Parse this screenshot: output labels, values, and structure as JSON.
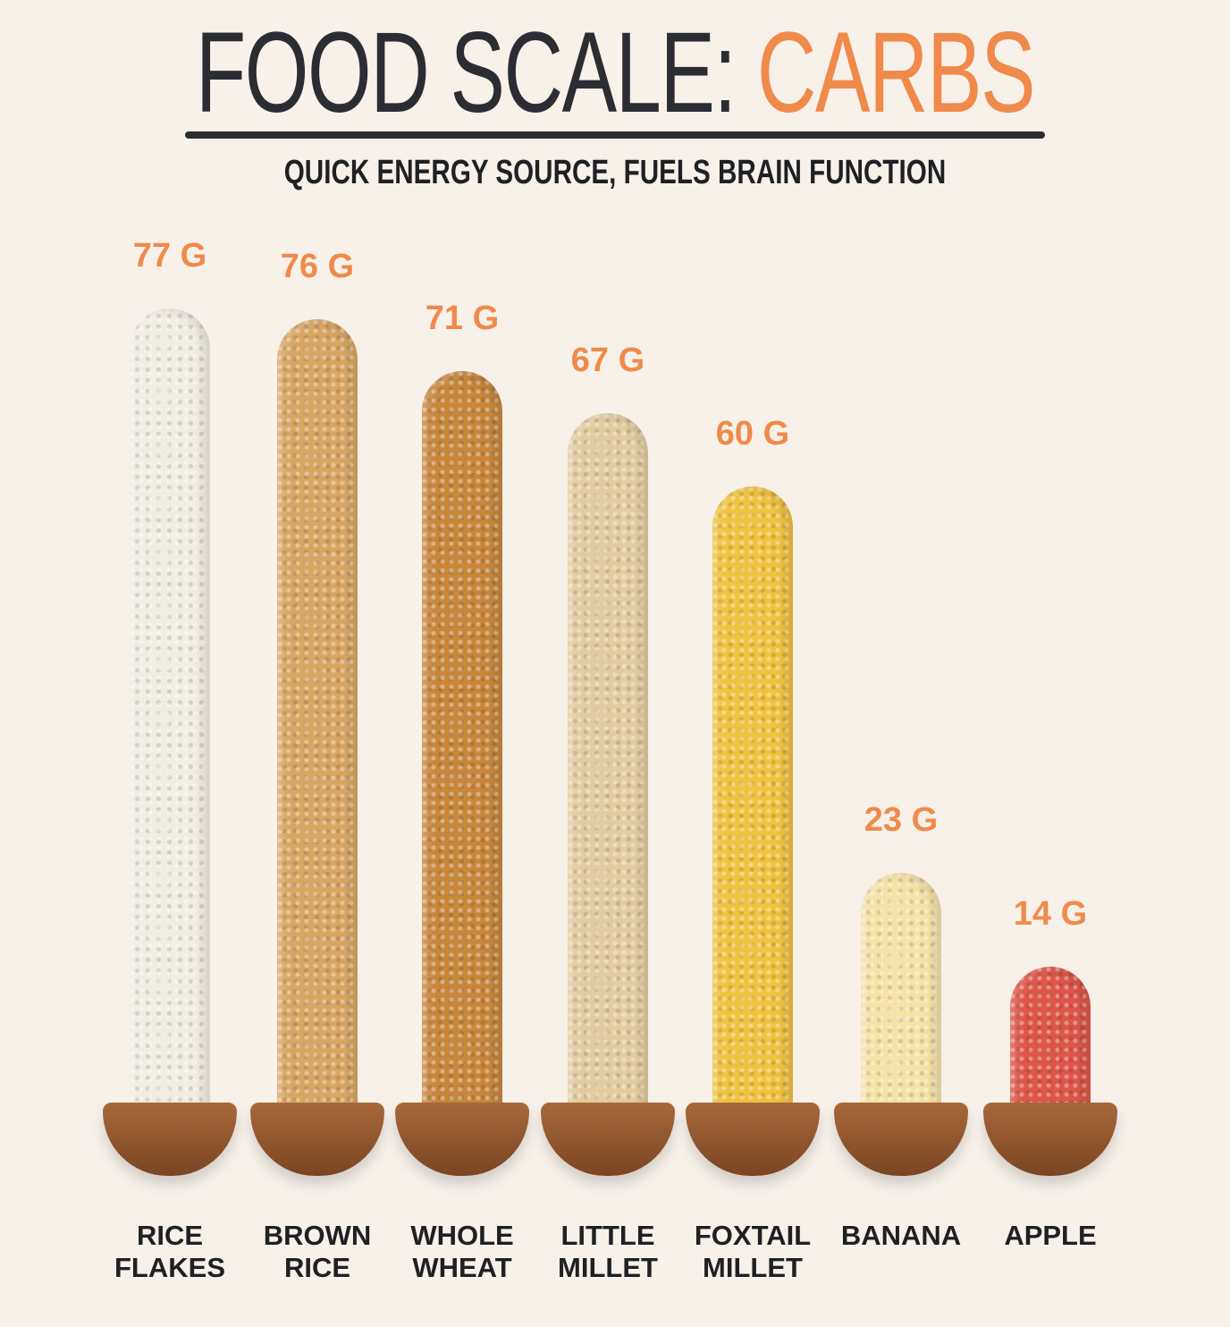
{
  "chart_data": {
    "type": "bar",
    "title": {
      "main": "FOOD SCALE:",
      "highlight": "CARBS"
    },
    "subtitle": "QUICK ENERGY SOURCE, FUELS BRAIN FUNCTION",
    "categories": [
      "RICE FLAKES",
      "BROWN RICE",
      "WHOLE WHEAT",
      "LITTLE MILLET",
      "FOXTAIL MILLET",
      "BANANA",
      "APPLE"
    ],
    "values": [
      77,
      76,
      71,
      67,
      60,
      23,
      14
    ],
    "value_labels": [
      "77 G",
      "76 G",
      "71 G",
      "67 G",
      "60 G",
      "23 G",
      "14 G"
    ],
    "colors": [
      "#f2ede3",
      "#d9a664",
      "#c8873d",
      "#e2cd9f",
      "#f0c241",
      "#f4e2a6",
      "#dd5648"
    ]
  }
}
